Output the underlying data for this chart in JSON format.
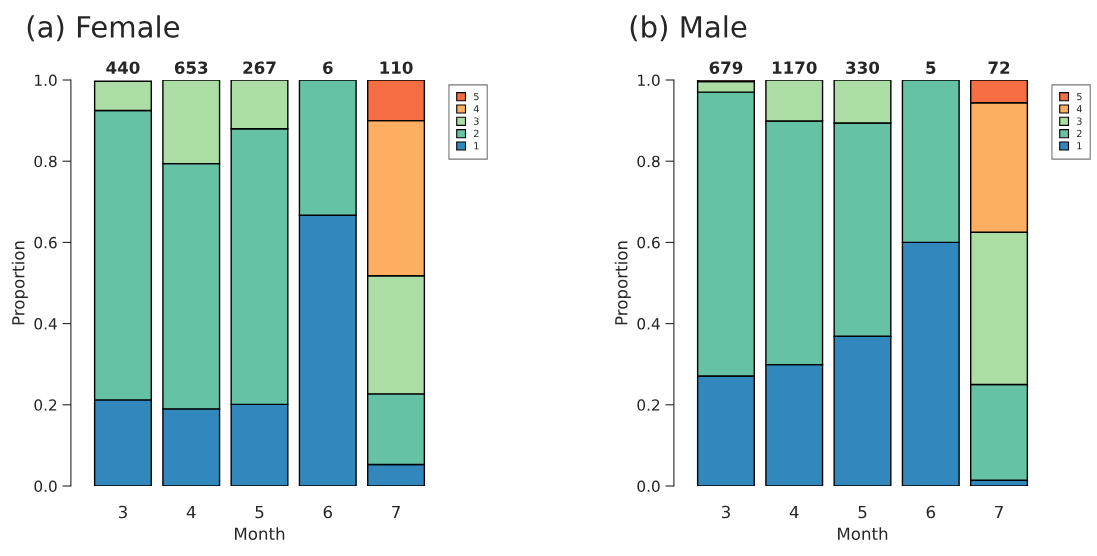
{
  "chart_data": [
    {
      "type": "bar",
      "title": "(a) Female",
      "xlabel": "Month",
      "ylabel": "Proportion",
      "categories": [
        "3",
        "4",
        "5",
        "6",
        "7"
      ],
      "stacked": true,
      "legend": "right",
      "ylim": [
        0,
        1
      ],
      "yticks": [
        {
          "value": 0,
          "label": "0.0"
        },
        {
          "value": 0.2,
          "label": "0.2"
        },
        {
          "value": 0.4,
          "label": "0.4"
        },
        {
          "value": 0.6,
          "label": "0.6"
        },
        {
          "value": 0.8,
          "label": "0.8"
        },
        {
          "value": 1,
          "label": "1.0"
        }
      ],
      "series": [
        {
          "name": "1",
          "color": "#3288bd",
          "values": [
            0.212,
            0.19,
            0.201,
            0.667,
            0.053
          ]
        },
        {
          "name": "2",
          "color": "#66c2a5",
          "values": [
            0.713,
            0.604,
            0.679,
            0.333,
            0.174
          ]
        },
        {
          "name": "3",
          "color": "#abdda4",
          "values": [
            0.072,
            0.206,
            0.12,
            null,
            0.291
          ]
        },
        {
          "name": "4",
          "color": "#fdae61",
          "values": [
            null,
            null,
            null,
            null,
            0.382
          ]
        },
        {
          "name": "5",
          "color": "#f46d43",
          "values": [
            null,
            null,
            null,
            null,
            0.1
          ]
        }
      ],
      "annotations": [
        {
          "text": "440",
          "x": "3",
          "y": 1
        },
        {
          "text": "653",
          "x": "4",
          "y": 1
        },
        {
          "text": "267",
          "x": "5",
          "y": 1
        },
        {
          "text": "6",
          "x": "6",
          "y": 1
        },
        {
          "text": "110",
          "x": "7",
          "y": 1
        }
      ]
    },
    {
      "type": "bar",
      "title": "(b) Male",
      "xlabel": "Month",
      "ylabel": "Proportion",
      "categories": [
        "3",
        "4",
        "5",
        "6",
        "7"
      ],
      "stacked": true,
      "legend": "right",
      "ylim": [
        0,
        1
      ],
      "yticks": [
        {
          "value": 0,
          "label": "0.0"
        },
        {
          "value": 0.2,
          "label": "0.2"
        },
        {
          "value": 0.4,
          "label": "0.4"
        },
        {
          "value": 0.6,
          "label": "0.6"
        },
        {
          "value": 0.8,
          "label": "0.8"
        },
        {
          "value": 1,
          "label": "1.0"
        }
      ],
      "series": [
        {
          "name": "1",
          "color": "#3288bd",
          "values": [
            0.271,
            0.299,
            0.369,
            0.6,
            0.014
          ]
        },
        {
          "name": "2",
          "color": "#66c2a5",
          "values": [
            0.699,
            0.6,
            0.525,
            0.4,
            0.236
          ]
        },
        {
          "name": "3",
          "color": "#abdda4",
          "values": [
            0.026,
            0.101,
            0.106,
            null,
            0.375
          ]
        },
        {
          "name": "4",
          "color": "#fdae61",
          "values": [
            0.004,
            null,
            null,
            null,
            0.319
          ]
        },
        {
          "name": "5",
          "color": "#f46d43",
          "values": [
            null,
            null,
            null,
            null,
            0.056
          ]
        }
      ],
      "annotations": [
        {
          "text": "679",
          "x": "3",
          "y": 1
        },
        {
          "text": "1170",
          "x": "4",
          "y": 1
        },
        {
          "text": "330",
          "x": "5",
          "y": 1
        },
        {
          "text": "5",
          "x": "6",
          "y": 1
        },
        {
          "text": "72",
          "x": "7",
          "y": 1
        }
      ]
    }
  ]
}
